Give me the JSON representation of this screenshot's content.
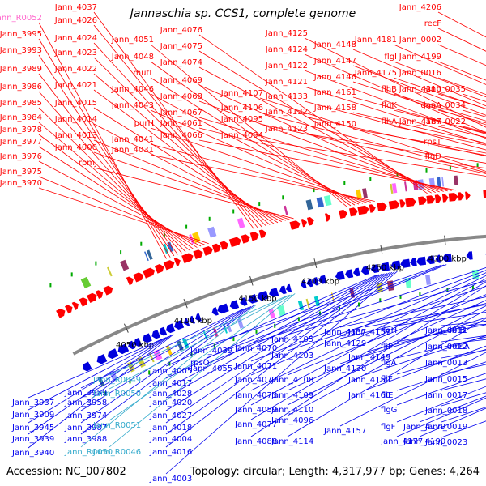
{
  "title": "Jannaschia sp. CCS1, complete genome",
  "footer": {
    "accession": "Accession: NC_007802",
    "topology": "Topology: circular; Length: 4,317,977 bp; Genes: 4,264"
  },
  "colors": {
    "top_label": "#ff0000",
    "bottom_label": "#0000ee",
    "rna_label": "#33aacc",
    "rna_top_label": "#ff66cc",
    "backbone": "#888888",
    "tick": "#00aa00"
  },
  "ticks": [
    "4050 kbp",
    "4100 kbp",
    "4150 kbp",
    "4200 kbp",
    "4250 kbp",
    "4300 kbp"
  ],
  "top_labels": [
    "Jann_R0052",
    "Jann_3995",
    "Jann_3993",
    "Jann_3989",
    "Jann_3986",
    "Jann_3985",
    "Jann_3984",
    "Jann_3978",
    "Jann_3977",
    "Jann_3976",
    "Jann_3975",
    "Jann_3970",
    "Jann_4037",
    "Jann_4026",
    "Jann_4024",
    "Jann_4023",
    "Jann_4022",
    "Jann_4021",
    "Jann_4015",
    "Jann_4014",
    "Jann_4013",
    "Jann_4000",
    "rpmJ",
    "Jann_4051",
    "Jann_4048",
    "mutL",
    "Jann_4046",
    "Jann_4043",
    "purH",
    "Jann_4041",
    "Jann_4031",
    "Jann_4076",
    "Jann_4075",
    "Jann_4074",
    "Jann_4069",
    "Jann_4068",
    "Jann_4067",
    "Jann_4061",
    "Jann_4066",
    "Jann_4107",
    "Jann_4106",
    "Jann_4095",
    "Jann_4094",
    "Jann_4125",
    "Jann_4124",
    "Jann_4122",
    "Jann_4121",
    "Jann_4133",
    "Jann_4132",
    "Jann_4123",
    "Jann_4148",
    "Jann_4147",
    "Jann_4146",
    "Jann_4161",
    "Jann_4158",
    "Jann_4150",
    "Jann_4181",
    "flgI",
    "Jann_4175",
    "flhB",
    "flgK",
    "flhA",
    "Jann_4206",
    "recF",
    "Jann_0002",
    "Jann_4199",
    "Jann_0016",
    "Jann_4210",
    "dnaA",
    "Jann_4187",
    "rpsT",
    "flgD",
    "Jann_0035",
    "Jann_0034",
    "Jann_0022"
  ],
  "bottom_labels": [
    "Jann_3937",
    "Jann_3909",
    "Jann_3945",
    "Jann_3939",
    "Jann_3940",
    "Jann_3959",
    "Jann_3958",
    "Jann_3974",
    "Jann_3987",
    "Jann_3988",
    "Jann_R0049",
    "Jann_R0050",
    "Jann_R0051",
    "Jann_R0046",
    "Jann_4005",
    "Jann_4017",
    "Jann_4028",
    "Jann_4020",
    "Jann_4027",
    "Jann_4018",
    "Jann_4004",
    "Jann_4016",
    "Jann_4003",
    "Jann_4039",
    "rpsO",
    "Jann_4055",
    "Jann_4070",
    "Jann_4071",
    "Jann_4072",
    "Jann_4073",
    "Jann_4059",
    "Jann_4077",
    "Jann_4088",
    "Jann_4105",
    "Jann_4103",
    "Jann_4108",
    "Jann_4109",
    "Jann_4110",
    "Jann_4096",
    "Jann_4114",
    "Jann_4137",
    "Jann_4129",
    "Jann_4130",
    "Jann_4157",
    "Jann_4149",
    "Jann_4152",
    "Jann_4160",
    "flgH",
    "fliP",
    "flgA",
    "fliF",
    "fliE",
    "flgG",
    "flgF",
    "Jann_4177",
    "Jann_4179",
    "Jann_4190",
    "Jann_0011",
    "infB",
    "Jann_0012",
    "nusA",
    "Jann_0013",
    "Jann_0015",
    "Jann_0017",
    "Jann_0018",
    "Jann_0019",
    "Jann_0023"
  ]
}
